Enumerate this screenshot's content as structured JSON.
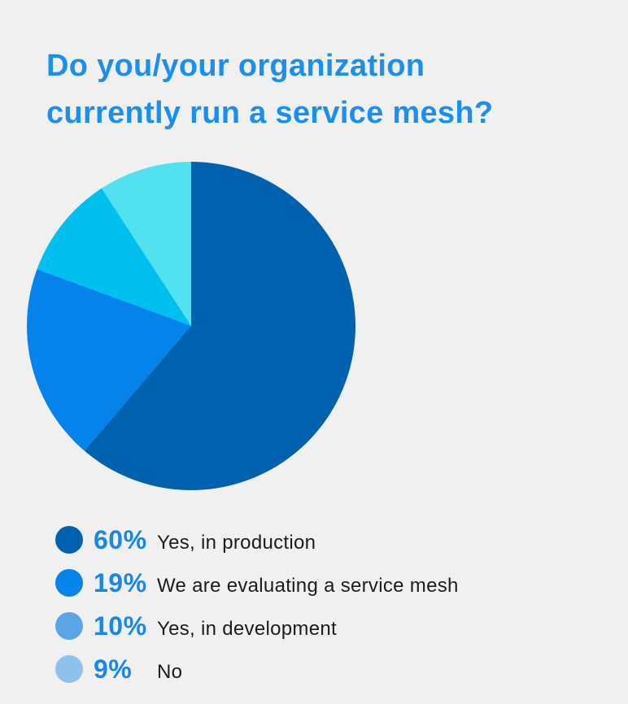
{
  "page": {
    "background_color": "#F0F0F1"
  },
  "header": {
    "title_line1": "Do you/your organization",
    "title_line2": "currently run a service mesh?",
    "title_color": "#1B8FED"
  },
  "chart_data": {
    "type": "pie",
    "title": "Do you/your organization currently run a service mesh?",
    "categories": [
      "Yes, in production",
      "We are evaluating a service mesh",
      "Yes, in development",
      "No"
    ],
    "values": [
      60,
      19,
      10,
      9
    ],
    "unit": "%",
    "slice_colors": [
      "#0061AE",
      "#0583EA",
      "#00C0EF",
      "#52E1EF"
    ],
    "start_angle_deg": 0,
    "direction": "clockwise",
    "legend_position": "bottom-left"
  },
  "legend": {
    "percent_color": "#1787E8",
    "label_color": "#1A1C1F",
    "items": [
      {
        "percent": "60%",
        "label": "Yes, in production",
        "dot_color": "#0061AE"
      },
      {
        "percent": "19%",
        "label": "We are evaluating a service mesh",
        "dot_color": "#0483EA"
      },
      {
        "percent": "10%",
        "label": "Yes, in development",
        "dot_color": "#5BA4E5"
      },
      {
        "percent": "9%",
        "label": "No",
        "dot_color": "#8DC2ED"
      }
    ]
  }
}
